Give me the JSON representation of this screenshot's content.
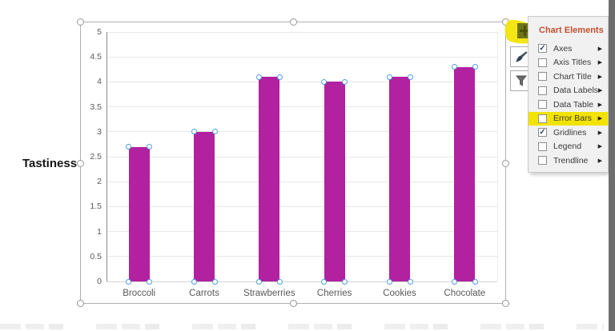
{
  "chart_data": {
    "type": "bar",
    "title": "",
    "categories": [
      "Broccoli",
      "Carrots",
      "Strawberries",
      "Cherries",
      "Cookies",
      "Chocolate"
    ],
    "values": [
      2.7,
      3,
      4.1,
      4,
      4.1,
      4.3
    ],
    "xlabel": "",
    "ylabel": "Tastiness",
    "ylim": [
      0,
      5
    ],
    "ytick_step": 0.5,
    "ytick_labels": [
      "5",
      "4.5",
      "4",
      "3.5",
      "3",
      "2.5",
      "2",
      "1.5",
      "1",
      "0.5",
      "0"
    ],
    "grid": true,
    "legend": "none",
    "bar_color": "#b2219f",
    "selection_dot_color": "#4e9fdd",
    "series_selected": true
  },
  "chart_elements_menu": {
    "title": "Chart Elements",
    "title_color": "#c0512f",
    "check_glyph": "✓",
    "submenu_arrow": "▶",
    "items": [
      {
        "label": "Axes",
        "checked": true,
        "highlighted": false
      },
      {
        "label": "Axis Titles",
        "checked": false,
        "highlighted": false
      },
      {
        "label": "Chart Title",
        "checked": false,
        "highlighted": false
      },
      {
        "label": "Data Labels",
        "checked": false,
        "highlighted": false
      },
      {
        "label": "Data Table",
        "checked": false,
        "highlighted": false
      },
      {
        "label": "Error Bars",
        "checked": false,
        "highlighted": true
      },
      {
        "label": "Gridlines",
        "checked": true,
        "highlighted": false
      },
      {
        "label": "Legend",
        "checked": false,
        "highlighted": false
      },
      {
        "label": "Trendline",
        "checked": false,
        "highlighted": false
      }
    ]
  },
  "side_buttons": {
    "chart_elements": {
      "icon": "plus-icon",
      "highlighted": true
    },
    "chart_styles": {
      "icon": "paintbrush-icon",
      "highlighted": false
    },
    "chart_filters": {
      "icon": "funnel-icon",
      "highlighted": false
    }
  },
  "annotation": {
    "highlight_color": "#f3e300"
  }
}
